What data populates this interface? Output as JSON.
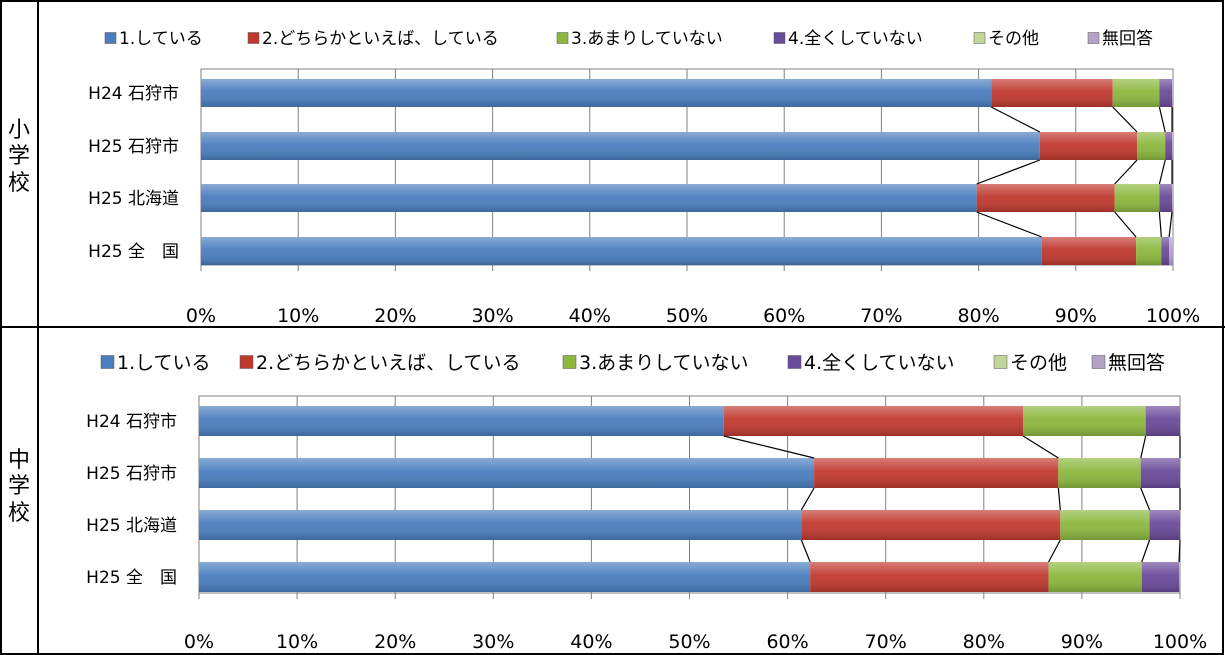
{
  "colors": [
    "#4a7ebf",
    "#c0392f",
    "#8cb83e",
    "#6a4a9a",
    "#c2d69b",
    "#b3a3c7"
  ],
  "panels": [
    {
      "label": "小学校",
      "chart_data": {
        "type": "bar",
        "orientation": "horizontal",
        "stacked": true,
        "categories": [
          "H24 石狩市",
          "H25 石狩市",
          "H25 北海道",
          "H25 全　国"
        ],
        "series": [
          {
            "name": "1.している",
            "values": [
              81.3,
              86.3,
              79.8,
              86.5
            ]
          },
          {
            "name": "2.どちらかといえば、している",
            "values": [
              12.5,
              10.0,
              14.2,
              9.7
            ]
          },
          {
            "name": "3.あまりしていない",
            "values": [
              4.8,
              2.9,
              4.6,
              2.6
            ]
          },
          {
            "name": "4.全くしていない",
            "values": [
              1.3,
              0.7,
              1.3,
              0.8
            ]
          },
          {
            "name": "その他",
            "values": [
              0.0,
              0.0,
              0.0,
              0.0
            ]
          },
          {
            "name": "無回答",
            "values": [
              0.1,
              0.1,
              0.1,
              0.4
            ]
          }
        ],
        "xlim": [
          0,
          100
        ],
        "xticks": [
          "0%",
          "10%",
          "20%",
          "30%",
          "40%",
          "50%",
          "60%",
          "70%",
          "80%",
          "90%",
          "100%"
        ],
        "legend": "top",
        "grid": true
      }
    },
    {
      "label": "中学校",
      "chart_data": {
        "type": "bar",
        "orientation": "horizontal",
        "stacked": true,
        "categories": [
          "H24 石狩市",
          "H25 石狩市",
          "H25 北海道",
          "H25 全　国"
        ],
        "series": [
          {
            "name": "1.している",
            "values": [
              53.5,
              62.7,
              61.4,
              62.3
            ]
          },
          {
            "name": "2.どちらかといえば、している",
            "values": [
              30.5,
              24.9,
              26.4,
              24.3
            ]
          },
          {
            "name": "3.あまりしていない",
            "values": [
              12.5,
              8.4,
              9.1,
              9.5
            ]
          },
          {
            "name": "4.全くしていない",
            "values": [
              3.5,
              4.0,
              3.1,
              3.8
            ]
          },
          {
            "name": "その他",
            "values": [
              0.0,
              0.0,
              0.0,
              0.0
            ]
          },
          {
            "name": "無回答",
            "values": [
              0.0,
              0.0,
              0.0,
              0.1
            ]
          }
        ],
        "xlim": [
          0,
          100
        ],
        "xticks": [
          "0%",
          "10%",
          "20%",
          "30%",
          "40%",
          "50%",
          "60%",
          "70%",
          "80%",
          "90%",
          "100%"
        ],
        "legend": "top",
        "grid": true
      }
    }
  ]
}
